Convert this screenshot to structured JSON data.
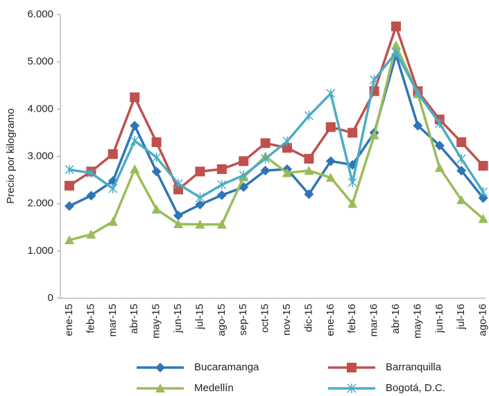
{
  "chart_data": {
    "type": "line",
    "ylabel": "Precio por kilogramo",
    "categories": [
      "ene-15",
      "feb-15",
      "mar-15",
      "abr-15",
      "may-15",
      "jun-15",
      "jul-15",
      "ago-15",
      "sep-15",
      "oct-15",
      "nov-15",
      "dic-15",
      "ene-16",
      "feb-16",
      "mar-16",
      "abr-16",
      "may-16",
      "jun-16",
      "jul-16",
      "ago-16"
    ],
    "series": [
      {
        "name": "Bucaramanga",
        "color": "#2e75b6",
        "marker": "diamond",
        "values": [
          1950,
          2170,
          2480,
          3650,
          2680,
          1750,
          1980,
          2180,
          2350,
          2700,
          2730,
          2200,
          2900,
          2820,
          3500,
          5150,
          3650,
          3230,
          2700,
          2120
        ]
      },
      {
        "name": "Barranquilla",
        "color": "#c0504d",
        "marker": "square",
        "values": [
          2380,
          2680,
          3050,
          4250,
          3300,
          2300,
          2680,
          2730,
          2900,
          3280,
          3180,
          2950,
          3620,
          3500,
          4380,
          5750,
          4380,
          3780,
          3300,
          2800
        ]
      },
      {
        "name": "Medellín",
        "color": "#9bbb59",
        "marker": "triangle",
        "values": [
          1230,
          1350,
          1620,
          2730,
          1880,
          1570,
          1560,
          1560,
          2560,
          3000,
          2650,
          2700,
          2550,
          2000,
          3450,
          5350,
          4320,
          2760,
          2080,
          1680
        ]
      },
      {
        "name": "Bogotá, D.C.",
        "color": "#4bacc6",
        "marker": "asterisk",
        "values": [
          2720,
          2650,
          2320,
          3330,
          2980,
          2420,
          2130,
          2400,
          2600,
          2950,
          3320,
          3860,
          4330,
          2450,
          4620,
          5200,
          4340,
          3700,
          2950,
          2250
        ]
      }
    ],
    "ylim": [
      0,
      6000
    ],
    "yticks": [
      0,
      {
        "value": 1000,
        "label": "1.000"
      },
      {
        "value": 2000,
        "label": "2.000"
      },
      {
        "value": 3000,
        "label": "3.000"
      },
      {
        "value": 4000,
        "label": "4.000"
      },
      {
        "value": 5000,
        "label": "5.000"
      },
      {
        "value": 6000,
        "label": "6.000"
      }
    ],
    "legend": "bottom"
  }
}
